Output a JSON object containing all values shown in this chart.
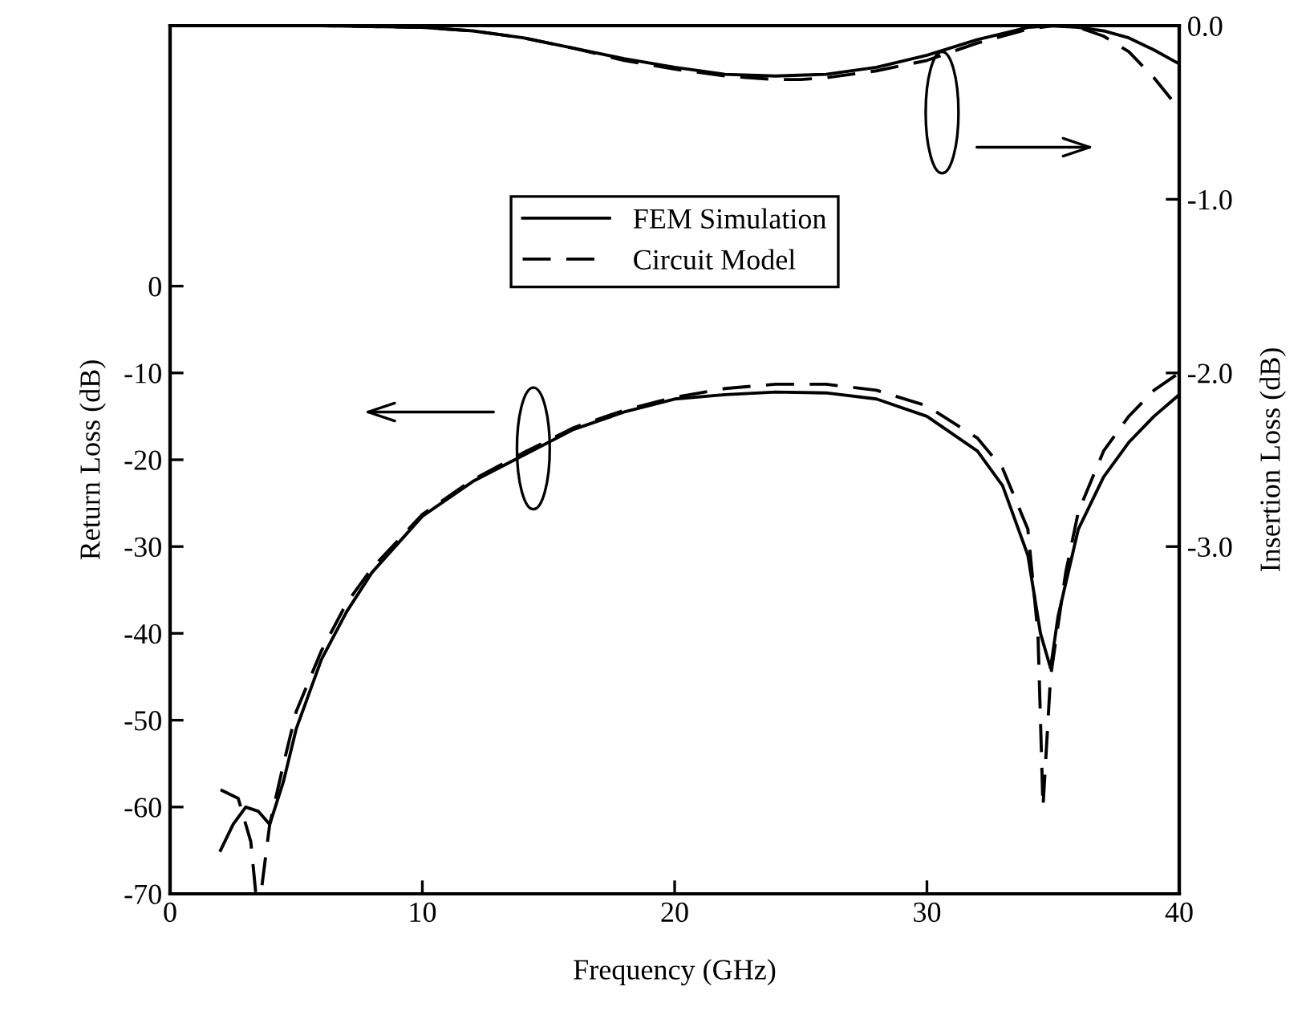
{
  "chart_data": {
    "type": "line",
    "xlabel": "Frequency (GHz)",
    "ylabel": "Return Loss (dB)",
    "y2label": "Insertion Loss (dB)",
    "xlim": [
      0,
      40
    ],
    "xticks": [
      0,
      10,
      20,
      30,
      40
    ],
    "ylim": [
      -70,
      30
    ],
    "yticks": [
      -70,
      -60,
      -50,
      -40,
      -30,
      -20,
      -10,
      0
    ],
    "y2lim": [
      -5,
      0
    ],
    "y2ticks": [
      {
        "value": -3,
        "label": "-3.0"
      },
      {
        "value": -2,
        "label": "-2.0"
      },
      {
        "value": -1,
        "label": "-1.0"
      },
      {
        "value": 0,
        "label": "0.0"
      }
    ],
    "grid": false,
    "legend": "top",
    "marker": "none",
    "series": [
      {
        "name": "FEM Simulation",
        "color": "#000000",
        "line_style": "solid",
        "x": [
          2,
          2.5,
          3,
          3.5,
          3.95,
          4.5,
          5,
          6,
          7,
          8,
          10,
          12,
          14,
          16,
          18,
          20,
          22,
          24,
          26,
          28,
          30,
          32,
          33,
          34,
          34.5,
          34.9,
          35.2,
          36,
          37,
          38,
          39,
          40
        ],
        "values": [
          -65,
          -62,
          -60,
          -60.5,
          -62,
          -57,
          -51,
          -43,
          -37.5,
          -33,
          -26.5,
          -22.5,
          -19.5,
          -16.5,
          -14.5,
          -13,
          -12.5,
          -12.2,
          -12.3,
          -13,
          -15,
          -19,
          -23,
          -31,
          -40,
          -44,
          -38,
          -28,
          -22,
          -18,
          -15,
          -12.5
        ]
      },
      {
        "name": "Circuit Model",
        "color": "#000000",
        "line_style": "dashed",
        "x": [
          2,
          2.7,
          3.2,
          3.4,
          3.6,
          3.95,
          4.5,
          5,
          6,
          7,
          8,
          10,
          12,
          14,
          16,
          18,
          20,
          22,
          24,
          26,
          28,
          30,
          32,
          33,
          34,
          34.4,
          34.6,
          34.9,
          35.5,
          36,
          37,
          38,
          39,
          40
        ],
        "values": [
          -58,
          -59,
          -64,
          -70,
          -70,
          -62,
          -55,
          -49,
          -42,
          -36.5,
          -32.5,
          -26.3,
          -22.3,
          -19.2,
          -16.3,
          -14.3,
          -12.8,
          -11.8,
          -11.3,
          -11.3,
          -12,
          -13.8,
          -17.5,
          -21,
          -28,
          -40,
          -60,
          -45,
          -33,
          -26,
          -19,
          -15,
          -12,
          -10
        ]
      },
      {
        "color": "#000000",
        "line_style": "solid",
        "axis": "y2",
        "x": [
          2,
          6,
          10,
          12,
          14,
          16,
          18,
          20,
          22,
          24,
          26,
          28,
          30,
          32,
          34,
          35,
          36,
          37,
          38,
          39,
          40
        ],
        "values": [
          0,
          0,
          -0.01,
          -0.03,
          -0.07,
          -0.13,
          -0.19,
          -0.24,
          -0.28,
          -0.29,
          -0.28,
          -0.24,
          -0.17,
          -0.08,
          -0.01,
          0,
          -0.01,
          -0.03,
          -0.07,
          -0.14,
          -0.22
        ]
      },
      {
        "color": "#000000",
        "line_style": "dashed",
        "axis": "y2",
        "x": [
          2,
          6,
          10,
          12,
          14,
          16,
          18,
          20,
          22,
          24,
          25,
          26,
          28,
          30,
          32,
          34,
          35,
          36,
          37,
          38,
          39,
          40
        ],
        "values": [
          0,
          0,
          -0.01,
          -0.03,
          -0.07,
          -0.13,
          -0.2,
          -0.25,
          -0.29,
          -0.31,
          -0.31,
          -0.3,
          -0.26,
          -0.2,
          -0.1,
          -0.02,
          0,
          -0.01,
          -0.06,
          -0.15,
          -0.3,
          -0.48
        ]
      }
    ]
  }
}
